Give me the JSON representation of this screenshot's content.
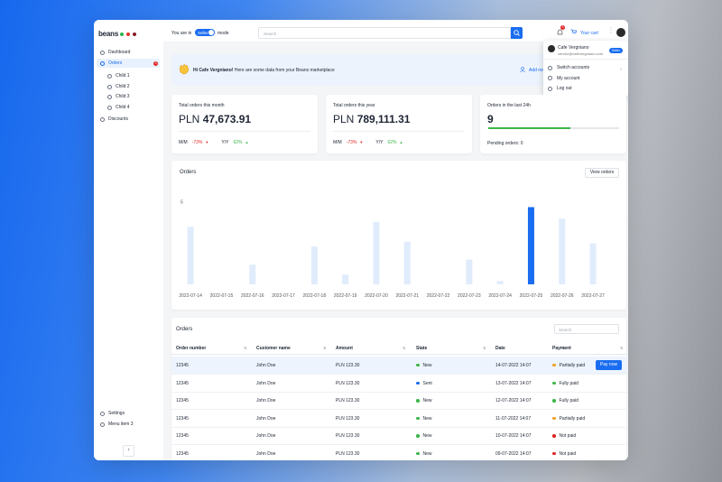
{
  "sidebar": {
    "logo": "beans",
    "items": [
      "Dashboard",
      "Orders",
      "Child 1",
      "Child 2",
      "Child 3",
      "Child 4",
      "Discounts"
    ],
    "orders_badge": "3",
    "bottom_items": [
      "Settings",
      "Menu item 3"
    ]
  },
  "topbar": {
    "mode_prefix": "You are in",
    "mode": "Seller",
    "mode_suffix": "mode",
    "search_placeholder": "Search",
    "notifications_badge": "3",
    "cart": "Your cart"
  },
  "account_menu": {
    "name": "Cafe Vergniano",
    "email": "vendor@cafevergniano.com",
    "role": "Seller",
    "items": [
      "Switch accounts",
      "My account",
      "Log out"
    ]
  },
  "banner": {
    "greeting": "Hi Cafe Vergniano!",
    "text": "Here are some data from your Beans marketplace",
    "action": "Add new"
  },
  "stats": [
    {
      "title": "Total orders this month",
      "currency": "PLN",
      "amount": "47,673.91",
      "mm_label": "M/M",
      "mm": "-73%",
      "yy_label": "Y/Y",
      "yy": "62%"
    },
    {
      "title": "Total orders this year",
      "currency": "PLN",
      "amount": "789,111.31",
      "mm_label": "M/M",
      "mm": "-73%",
      "yy_label": "Y/Y",
      "yy": "62%"
    },
    {
      "title": "Orders in the last 24h",
      "amount": "9",
      "progress": 63,
      "footer": "Pending orders: 0"
    }
  ],
  "chart_data": {
    "type": "bar",
    "title": "Orders",
    "button": "View orders",
    "categories": [
      "2022-07-14",
      "2022-07-15",
      "2022-07-16",
      "2022-07-17",
      "2022-07-18",
      "2022-07-19",
      "2022-07-20",
      "2022-07-21",
      "2022-07-22",
      "2022-07-23",
      "2022-07-24",
      "2022-07-25",
      "2022-07-26",
      "2022-07-27"
    ],
    "values": [
      3.5,
      0,
      1.2,
      0,
      2.3,
      0.6,
      3.8,
      2.6,
      0,
      1.5,
      0.2,
      4.7,
      4.0,
      2.5
    ],
    "colors": [
      "#e0ecfc",
      "#e0ecfc",
      "#e0ecfc",
      "#e0ecfc",
      "#e0ecfc",
      "#e0ecfc",
      "#e0ecfc",
      "#e0ecfc",
      "#e0ecfc",
      "#e0ecfc",
      "#e0ecfc",
      "#1a6cf0",
      "#e0ecfc",
      "#e0ecfc"
    ],
    "ylim": [
      0,
      5
    ],
    "yticks": [
      5
    ],
    "grid": false
  },
  "orders_table": {
    "title": "Orders",
    "search_placeholder": "Search",
    "columns": [
      "Order number",
      "Customer name",
      "Amount",
      "State",
      "Date",
      "Payment"
    ],
    "rows": [
      [
        "12345",
        "John Doe",
        "PLN 123.30",
        "New",
        "14-07-2022 14:07",
        "Partially paid"
      ],
      [
        "12345",
        "John Doe",
        "PLN 123.30",
        "Sent",
        "13-07-2022 14:07",
        "Fully paid"
      ],
      [
        "12345",
        "John Doe",
        "PLN 123.30",
        "New",
        "12-07-2022 14:07",
        "Fully paid"
      ],
      [
        "12345",
        "John Doe",
        "PLN 123.30",
        "New",
        "11-07-2022 14:07",
        "Partially paid"
      ],
      [
        "12345",
        "John Doe",
        "PLN 123.30",
        "New",
        "10-07-2022 14:07",
        "Not paid"
      ],
      [
        "12345",
        "John Doe",
        "PLN 123.30",
        "New",
        "09-07-2022 14:07",
        "Not paid"
      ]
    ],
    "state_colors": [
      "#3cb64a",
      "#1a6cf0",
      "#3cb64a",
      "#3cb64a",
      "#3cb64a",
      "#3cb64a"
    ],
    "payment_colors": [
      "#f0a020",
      "#3cb64a",
      "#3cb64a",
      "#f0a020",
      "#e02424",
      "#e02424"
    ],
    "action": "Pay now"
  }
}
